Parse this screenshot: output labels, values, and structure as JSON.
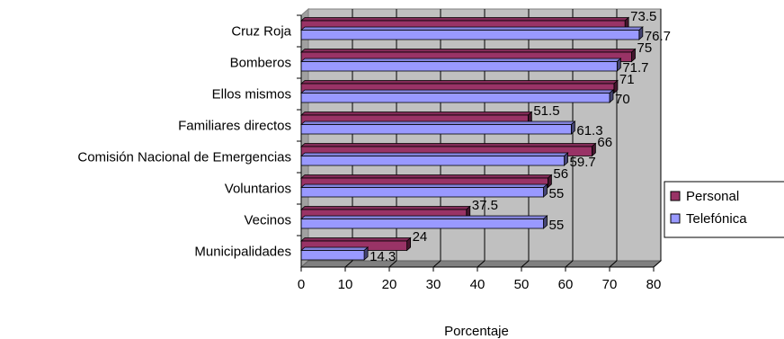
{
  "chart_data": {
    "type": "bar",
    "orientation": "horizontal",
    "categories": [
      "Cruz Roja",
      "Bomberos",
      "Ellos mismos",
      "Familiares directos",
      "Comisión Nacional de Emergencias",
      "Voluntarios",
      "Vecinos",
      "Municipalidades"
    ],
    "series": [
      {
        "name": "Personal",
        "values": [
          73.5,
          75,
          71,
          51.5,
          66,
          56,
          37.5,
          24
        ],
        "color": "#993366"
      },
      {
        "name": "Telefónica",
        "values": [
          76.7,
          71.7,
          70,
          61.3,
          59.7,
          55,
          55,
          14.3
        ],
        "color": "#9999ff"
      }
    ],
    "value_labels": {
      "Personal": [
        "73.5",
        "75",
        "71",
        "51.5",
        "66",
        "56",
        "37.5",
        "24"
      ],
      "Telefónica": [
        "76.7",
        "71.7",
        "70",
        "61.3",
        "59.7",
        "55",
        "55",
        "14.3"
      ]
    },
    "xlabel": "Porcentaje",
    "ylabel": "",
    "xlim": [
      0,
      80
    ],
    "x_ticks": [
      0,
      10,
      20,
      30,
      40,
      50,
      60,
      70,
      80
    ],
    "grid": true,
    "legend": "right",
    "style": "3d",
    "wall_color": "#c0c0c0"
  }
}
